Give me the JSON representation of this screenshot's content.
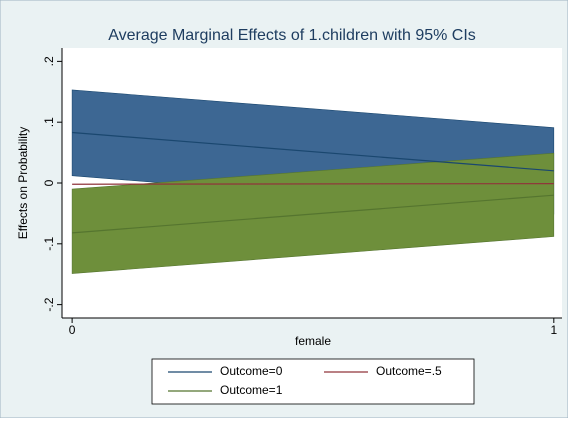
{
  "chart_data": {
    "type": "line",
    "title": "Average Marginal Effects of 1.children with 95% CIs",
    "x_label": "female",
    "y_label": "Effects on Probability",
    "x": [
      0,
      1
    ],
    "xlim": [
      -0.021,
      1.017
    ],
    "xticks": [
      0,
      1
    ],
    "ylim": [
      -0.222,
      0.222
    ],
    "yticks": [
      {
        "value": -0.2,
        "label": "-.2"
      },
      {
        "value": -0.1,
        "label": "-.1"
      },
      0,
      {
        "value": 0.1,
        "label": ".1"
      },
      {
        "value": 0.2,
        "label": ".2"
      }
    ],
    "series": [
      {
        "name": "Outcome=0",
        "color": "#1a476f",
        "band_color": "#3d6793",
        "values": [
          0.083,
          0.02
        ],
        "ci_lower": [
          0.012,
          -0.051
        ],
        "ci_upper": [
          0.153,
          0.091
        ]
      },
      {
        "name": "Outcome=1",
        "color": "#55752f",
        "band_color": "#6e8f3b",
        "values": [
          -0.082,
          -0.02
        ],
        "ci_lower": [
          -0.149,
          -0.088
        ],
        "ci_upper": [
          -0.01,
          0.049
        ]
      },
      {
        "name": "Outcome=.5",
        "color": "#90353b",
        "values": [
          -0.002,
          -0.001
        ]
      }
    ],
    "legend_order": [
      0,
      2,
      1
    ]
  }
}
